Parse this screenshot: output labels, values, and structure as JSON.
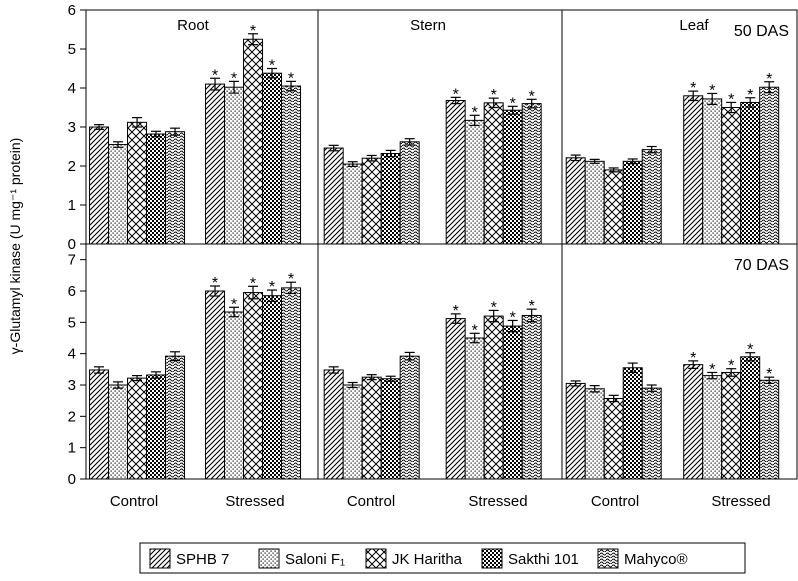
{
  "ylabel": "γ-Glutamyl kinase (U mg⁻¹ protein)",
  "legend_entries": [
    "SPHB 7",
    "Saloni F₁",
    "JK Haritha",
    "Sakthi 101",
    "Mahyco®"
  ],
  "chart_data": [
    {
      "type": "bar",
      "title": "50 DAS",
      "panel_labels": [
        "Root",
        "Stern",
        "Leaf"
      ],
      "categories": [
        "Control",
        "Stressed"
      ],
      "ylim": [
        0,
        6
      ],
      "yticks": [
        "0",
        "1",
        "2",
        "3",
        "4",
        "5",
        "6"
      ],
      "series_names": [
        "SPHB 7",
        "Saloni F₁",
        "JK Haritha",
        "Sakthi 101",
        "Mahyco®"
      ],
      "panels": [
        {
          "label": "Root",
          "control": [
            3.0,
            2.55,
            3.12,
            2.82,
            2.88
          ],
          "control_err": [
            0.06,
            0.07,
            0.12,
            0.07,
            0.09
          ],
          "stressed": [
            4.1,
            4.02,
            5.25,
            4.38,
            4.05
          ],
          "stressed_err": [
            0.15,
            0.15,
            0.14,
            0.12,
            0.12
          ]
        },
        {
          "label": "Stern",
          "control": [
            2.46,
            2.05,
            2.2,
            2.32,
            2.62
          ],
          "control_err": [
            0.07,
            0.06,
            0.07,
            0.08,
            0.08
          ],
          "stressed": [
            3.68,
            3.17,
            3.62,
            3.43,
            3.6
          ],
          "stressed_err": [
            0.08,
            0.13,
            0.12,
            0.1,
            0.11
          ]
        },
        {
          "label": "Leaf",
          "control": [
            2.21,
            2.12,
            1.9,
            2.12,
            2.42
          ],
          "control_err": [
            0.07,
            0.05,
            0.05,
            0.06,
            0.08
          ],
          "stressed": [
            3.8,
            3.72,
            3.5,
            3.63,
            4.02
          ],
          "stressed_err": [
            0.12,
            0.14,
            0.13,
            0.12,
            0.14
          ]
        }
      ],
      "significance_marker": "*",
      "grid": false,
      "legend_position": "bottom"
    },
    {
      "type": "bar",
      "title": "70 DAS",
      "categories": [
        "Control",
        "Stressed"
      ],
      "xtick_labels": [
        "Control",
        "Stressed",
        "Control",
        "Stressed",
        "Control",
        "Stressed"
      ],
      "ylim": [
        0,
        7.5
      ],
      "yticks": [
        "0",
        "1",
        "2",
        "3",
        "4",
        "5",
        "6",
        "7"
      ],
      "series_names": [
        "SPHB 7",
        "Saloni F₁",
        "JK Haritha",
        "Sakthi 101",
        "Mahyco®"
      ],
      "panels": [
        {
          "label": "Root",
          "control": [
            3.48,
            3.0,
            3.22,
            3.32,
            3.92
          ],
          "control_err": [
            0.1,
            0.1,
            0.08,
            0.1,
            0.14
          ],
          "stressed": [
            6.0,
            5.33,
            5.95,
            5.85,
            6.1
          ],
          "stressed_err": [
            0.16,
            0.15,
            0.2,
            0.18,
            0.18
          ]
        },
        {
          "label": "Stern",
          "control": [
            3.48,
            3.0,
            3.25,
            3.2,
            3.92
          ],
          "control_err": [
            0.1,
            0.08,
            0.08,
            0.08,
            0.12
          ],
          "stressed": [
            5.12,
            4.5,
            5.2,
            4.88,
            5.22
          ],
          "stressed_err": [
            0.15,
            0.15,
            0.18,
            0.18,
            0.2
          ]
        },
        {
          "label": "Leaf",
          "control": [
            3.05,
            2.88,
            2.57,
            3.55,
            2.9
          ],
          "control_err": [
            0.08,
            0.1,
            0.1,
            0.15,
            0.1
          ],
          "stressed": [
            3.65,
            3.3,
            3.4,
            3.9,
            3.15
          ],
          "stressed_err": [
            0.12,
            0.1,
            0.12,
            0.13,
            0.1
          ]
        }
      ],
      "significance_marker": "*",
      "grid": false,
      "legend_position": "bottom"
    }
  ]
}
